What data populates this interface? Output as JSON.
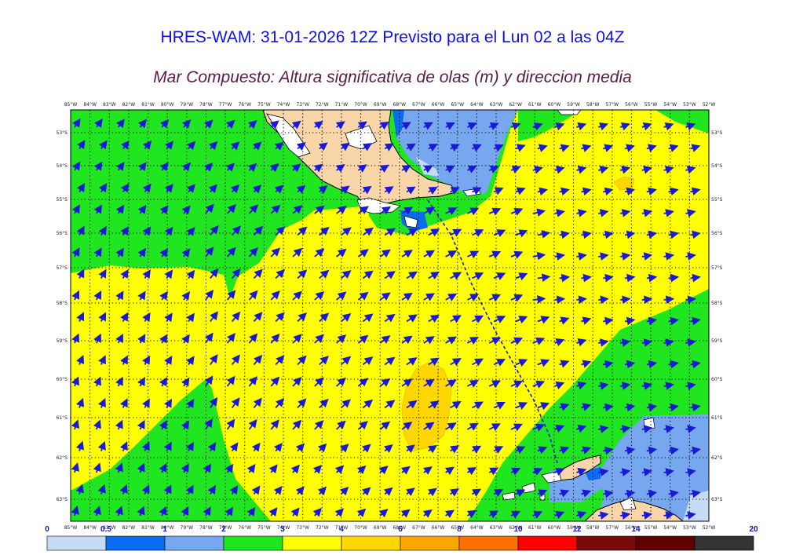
{
  "title": "HRES-WAM: 31-01-2026 12Z Previsto para el Lun 02 a las 04Z",
  "subtitle": "Mar Compuesto: Altura significativa de olas (m) y direccion media",
  "map": {
    "lon_labels": [
      "85°W",
      "84°W",
      "83°W",
      "82°W",
      "81°W",
      "80°W",
      "79°W",
      "78°W",
      "77°W",
      "76°W",
      "75°W",
      "74°W",
      "73°W",
      "72°W",
      "71°W",
      "70°W",
      "69°W",
      "68°W",
      "67°W",
      "66°W",
      "65°W",
      "64°W",
      "63°W",
      "62°W",
      "61°W",
      "60°W",
      "59°W",
      "58°W",
      "57°W",
      "56°W",
      "55°W",
      "54°W",
      "53°W",
      "52°W"
    ],
    "lat_labels": [
      "53°S",
      "54°S",
      "55°S",
      "56°S",
      "57°S",
      "58°S",
      "59°S",
      "60°S",
      "61°S",
      "62°S",
      "63°S"
    ],
    "colors": {
      "land": "#f9d6a8",
      "wave_0_0_5": "#c6dcf5",
      "wave_0_5_1": "#0a6cf0",
      "wave_1_2": "#77a7ee",
      "wave_2_3": "#1fe61f",
      "wave_3_4": "#ffff00",
      "wave_4_6": "#ffd700",
      "arrow": "#1a1ad6",
      "grid": "#000000"
    }
  },
  "colorbar": {
    "labels": [
      "0",
      "0.5",
      "1",
      "2",
      "3",
      "4",
      "6",
      "8",
      "10",
      "12",
      "14",
      "20"
    ],
    "colors": [
      "#c6dcf5",
      "#0a6cf0",
      "#77a7ee",
      "#1fe61f",
      "#ffff00",
      "#ffd700",
      "#ffa500",
      "#ff7000",
      "#ff0000",
      "#7a0a0a",
      "#600000",
      "#333333"
    ]
  }
}
